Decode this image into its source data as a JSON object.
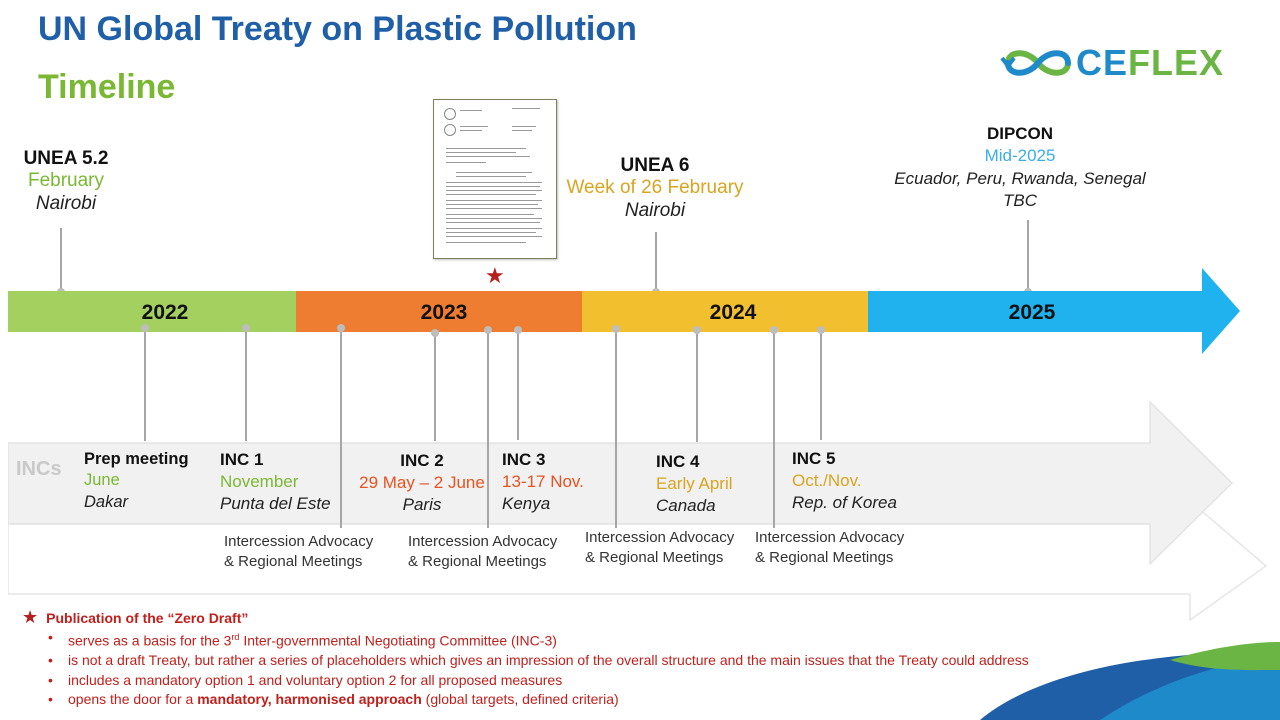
{
  "header": {
    "title": "UN Global Treaty on Plastic Pollution",
    "subtitle": "Timeline"
  },
  "logo": {
    "text_main": "CE",
    "text_accent": "FLEX"
  },
  "top_events": [
    {
      "name": "UNEA 5.2",
      "date": "February",
      "place": "Nairobi"
    },
    {
      "name": "UNEA 6",
      "date": "Week of 26 February",
      "place": "Nairobi"
    },
    {
      "name": "DIPCON",
      "date": "Mid-2025",
      "place": "Ecuador, Peru, Rwanda, Senegal",
      "place2": "TBC"
    }
  ],
  "years": [
    "2022",
    "2023",
    "2024",
    "2025"
  ],
  "incs_label": "INCs",
  "incs": [
    {
      "name": "Prep meeting",
      "date": "June",
      "place": "Dakar"
    },
    {
      "name": "INC 1",
      "date": "November",
      "place": "Punta del Este"
    },
    {
      "name": "INC 2",
      "date": "29 May – 2 June",
      "place": "Paris"
    },
    {
      "name": "INC 3",
      "date": "13-17 Nov.",
      "place": "Kenya"
    },
    {
      "name": "INC 4",
      "date": "Early April",
      "place": "Canada"
    },
    {
      "name": "INC 5",
      "date": "Oct./Nov.",
      "place": "Rep. of Korea"
    }
  ],
  "intersessions": [
    {
      "line1": "Intercession Advocacy",
      "line2": "& Regional Meetings"
    },
    {
      "line1": "Intercession Advocacy",
      "line2": "& Regional Meetings"
    },
    {
      "line1": "Intercession Advocacy",
      "line2": "& Regional Meetings"
    },
    {
      "line1": "Intercession Advocacy",
      "line2": "& Regional Meetings"
    }
  ],
  "notes": {
    "heading": "Publication of the “Zero Draft”",
    "b1_pre": "serves as a basis for the 3",
    "b1_sup": "rd",
    "b1_post": " Inter-governmental Negotiating Committee (INC-3)",
    "b2": "is not a draft Treaty, but rather a series of placeholders which gives an impression of the overall structure and the main issues that the Treaty could address",
    "b3": "includes a mandatory option 1 and voluntary option 2 for all proposed measures",
    "b4_pre": "opens the door for a ",
    "b4_bold": "mandatory, harmonised approach",
    "b4_post": " (global targets, defined criteria)"
  },
  "colors": {
    "y2022": "#a3d05f",
    "y2023": "#ee7d31",
    "y2024": "#f2bf2f",
    "y2025": "#1fb2ef",
    "title": "#1f5fa8",
    "subtitle": "#7ab833",
    "note": "#c0201c"
  }
}
